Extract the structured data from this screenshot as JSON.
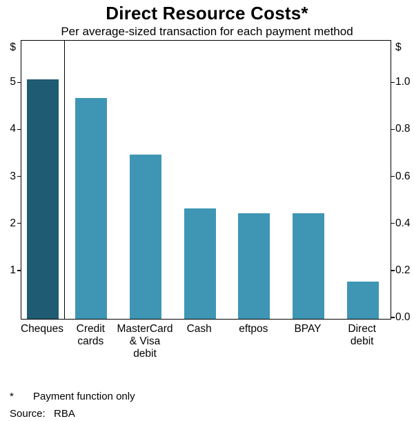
{
  "header": {
    "title": "Direct Resource Costs*",
    "subtitle": "Per average-sized transaction for each payment method"
  },
  "footer": {
    "footnote_marker": "*",
    "footnote_text": "Payment function only",
    "source_label": "Source:",
    "source_value": "RBA"
  },
  "colors": {
    "bar_dark_teal": "#1f5b72",
    "bar_light_teal": "#3e96b4",
    "axis_black": "#000000",
    "background": "#ffffff"
  },
  "chart_data": {
    "type": "bar",
    "title": "Direct Resource Costs*",
    "subtitle": "Per average-sized transaction for each payment method",
    "grid": false,
    "legend": "none",
    "left_axis": {
      "unit": "$",
      "tick_labels": [
        "1",
        "2",
        "3",
        "4",
        "5"
      ],
      "tick_values": [
        1,
        2,
        3,
        4,
        5
      ],
      "range": [
        0,
        5.9
      ]
    },
    "right_axis": {
      "unit": "$",
      "tick_labels": [
        "0.0",
        "0.2",
        "0.4",
        "0.6",
        "0.8",
        "1.0"
      ],
      "tick_values": [
        0,
        0.2,
        0.4,
        0.6,
        0.8,
        1.0
      ],
      "range": [
        0,
        1.18
      ]
    },
    "panel_divider_after_index": 0,
    "categories": [
      "Cheques",
      "Credit cards",
      "MasterCard & Visa debit",
      "Cash",
      "eftpos",
      "BPAY",
      "Direct debit"
    ],
    "bars": [
      {
        "category": "Cheques",
        "display_label": "Cheques",
        "value": 5.1,
        "scale": "left",
        "color": "#1f5b72"
      },
      {
        "category": "Credit cards",
        "display_label": "Credit\ncards",
        "value": 0.94,
        "scale": "right",
        "color": "#3e96b4"
      },
      {
        "category": "MasterCard & Visa debit",
        "display_label": "MasterCard\n& Visa\ndebit",
        "value": 0.7,
        "scale": "right",
        "color": "#3e96b4"
      },
      {
        "category": "Cash",
        "display_label": "Cash",
        "value": 0.47,
        "scale": "right",
        "color": "#3e96b4"
      },
      {
        "category": "eftpos",
        "display_label": "eftpos",
        "value": 0.45,
        "scale": "right",
        "color": "#3e96b4"
      },
      {
        "category": "BPAY",
        "display_label": "BPAY",
        "value": 0.45,
        "scale": "right",
        "color": "#3e96b4"
      },
      {
        "category": "Direct debit",
        "display_label": "Direct\ndebit",
        "value": 0.16,
        "scale": "right",
        "color": "#3e96b4"
      }
    ],
    "footnote": "* Payment function only",
    "source": "RBA"
  }
}
